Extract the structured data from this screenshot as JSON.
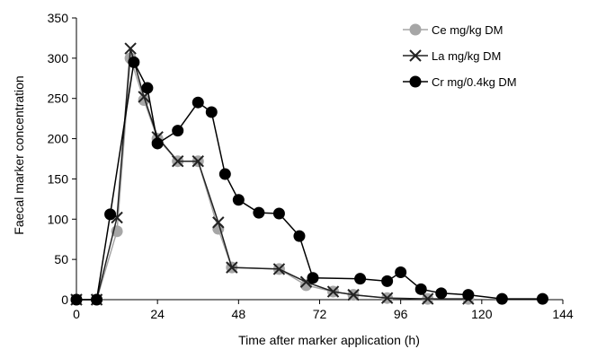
{
  "chart_data": {
    "type": "line",
    "title": "",
    "xlabel": "Time after marker application (h)",
    "ylabel": "Faecal marker concentration",
    "xlim": [
      0,
      144
    ],
    "ylim": [
      0,
      350
    ],
    "x_ticks": [
      0,
      24,
      48,
      72,
      96,
      120,
      144
    ],
    "y_ticks": [
      0,
      50,
      100,
      150,
      200,
      250,
      300,
      350
    ],
    "grid": false,
    "legend_position": "top-right",
    "series": [
      {
        "name": "Ce mg/kg DM",
        "color": "#a6a6a6",
        "marker": "circle",
        "points": [
          [
            0,
            0
          ],
          [
            6,
            0
          ],
          [
            12,
            85
          ],
          [
            16,
            300
          ],
          [
            20,
            248
          ],
          [
            24,
            200
          ],
          [
            30,
            172
          ],
          [
            36,
            172
          ],
          [
            42,
            88
          ],
          [
            46,
            40
          ],
          [
            60,
            38
          ],
          [
            68,
            18
          ],
          [
            76,
            10
          ],
          [
            82,
            6
          ],
          [
            92,
            2
          ],
          [
            104,
            1
          ],
          [
            116,
            1
          ]
        ]
      },
      {
        "name": "La mg/kg DM",
        "color": "#222222",
        "marker": "x",
        "points": [
          [
            0,
            0
          ],
          [
            6,
            0
          ],
          [
            12,
            102
          ],
          [
            16,
            312
          ],
          [
            20,
            252
          ],
          [
            24,
            202
          ],
          [
            30,
            172
          ],
          [
            36,
            172
          ],
          [
            42,
            96
          ],
          [
            46,
            40
          ],
          [
            60,
            38
          ],
          [
            68,
            22
          ],
          [
            76,
            10
          ],
          [
            82,
            6
          ],
          [
            92,
            2
          ],
          [
            104,
            1
          ],
          [
            116,
            1
          ]
        ]
      },
      {
        "name": "Cr mg/0.4kg DM",
        "color": "#000000",
        "marker": "circle",
        "points": [
          [
            0,
            0
          ],
          [
            6,
            0
          ],
          [
            10,
            106
          ],
          [
            17,
            295
          ],
          [
            21,
            263
          ],
          [
            24,
            194
          ],
          [
            30,
            210
          ],
          [
            36,
            245
          ],
          [
            40,
            233
          ],
          [
            44,
            156
          ],
          [
            48,
            124
          ],
          [
            54,
            108
          ],
          [
            60,
            107
          ],
          [
            66,
            79
          ],
          [
            70,
            27
          ],
          [
            84,
            26
          ],
          [
            92,
            23
          ],
          [
            96,
            34
          ],
          [
            102,
            13
          ],
          [
            108,
            8
          ],
          [
            116,
            6
          ],
          [
            126,
            1
          ],
          [
            138,
            1
          ]
        ]
      }
    ]
  }
}
